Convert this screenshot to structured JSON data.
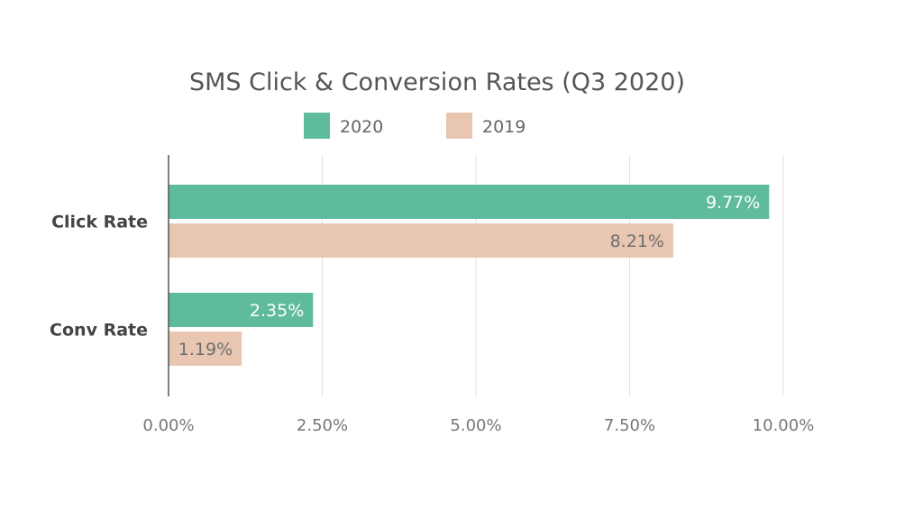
{
  "chart_data": {
    "type": "bar",
    "orientation": "horizontal",
    "title": "SMS Click & Conversion Rates (Q3 2020)",
    "categories": [
      "Click Rate",
      "Conv Rate"
    ],
    "series": [
      {
        "name": "2020",
        "values": [
          9.77,
          2.35
        ],
        "labels": [
          "9.77%",
          "2.35%"
        ],
        "color": "#5fbb9e",
        "label_color": "#ffffff"
      },
      {
        "name": "2019",
        "values": [
          8.21,
          1.19
        ],
        "labels": [
          "8.21%",
          "1.19%"
        ],
        "color": "#e8c6b2",
        "label_color": "#6e6e6e"
      }
    ],
    "xlim": [
      0,
      10
    ],
    "x_ticks": [
      0,
      2.5,
      5,
      7.5,
      10
    ],
    "x_tick_labels": [
      "0.00%",
      "2.50%",
      "5.00%",
      "7.50%",
      "10.00%"
    ],
    "xlabel": "",
    "ylabel": "",
    "grid": "vertical",
    "legend_position": "top"
  }
}
